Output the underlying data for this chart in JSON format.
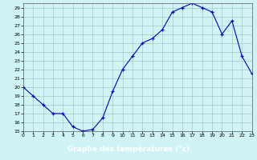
{
  "x": [
    0,
    1,
    2,
    3,
    4,
    5,
    6,
    7,
    8,
    9,
    10,
    11,
    12,
    13,
    14,
    15,
    16,
    17,
    18,
    19,
    20,
    21,
    22,
    23
  ],
  "y": [
    20,
    19,
    18,
    17,
    17,
    15.5,
    15,
    15.2,
    16.5,
    19.5,
    22,
    23.5,
    25,
    25.5,
    26.5,
    28.5,
    29,
    29.5,
    29,
    28.5,
    26,
    27.5,
    23.5,
    21.5
  ],
  "xlabel": "Graphe des températures (°c)",
  "ylim": [
    15,
    29.5
  ],
  "xlim": [
    0,
    23
  ],
  "yticks": [
    15,
    16,
    17,
    18,
    19,
    20,
    21,
    22,
    23,
    24,
    25,
    26,
    27,
    28,
    29
  ],
  "xticks": [
    0,
    1,
    2,
    3,
    4,
    5,
    6,
    7,
    8,
    9,
    10,
    11,
    12,
    13,
    14,
    15,
    16,
    17,
    18,
    19,
    20,
    21,
    22,
    23
  ],
  "line_color": "#0000cc",
  "marker": "+",
  "bg_color": "#d0f4f4",
  "grid_color": "#9bbcbc",
  "xlabel_bg": "#0000cc",
  "xlabel_fg": "#ffffff"
}
